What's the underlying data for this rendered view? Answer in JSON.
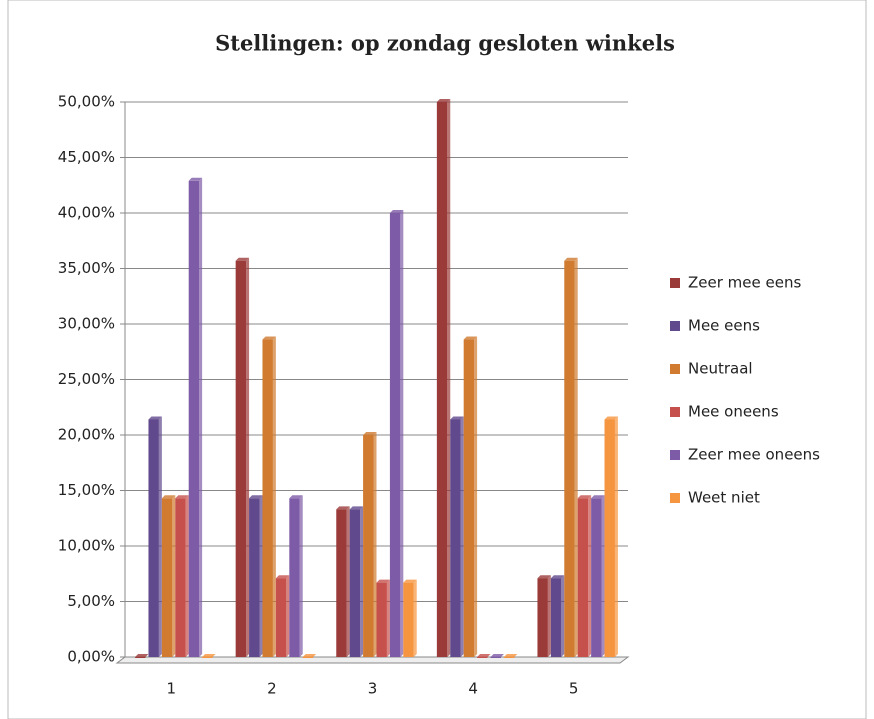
{
  "chart_data": {
    "type": "bar",
    "title": "Stellingen: op zondag gesloten winkels",
    "categories": [
      "1",
      "2",
      "3",
      "4",
      "5"
    ],
    "series": [
      {
        "name": "Zeer mee eens",
        "color": "#9b3b39",
        "values": [
          0,
          35.7,
          13.3,
          50.0,
          7.1
        ]
      },
      {
        "name": "Mee eens",
        "color": "#60498c",
        "values": [
          21.4,
          14.3,
          13.3,
          21.4,
          7.1
        ]
      },
      {
        "name": "Neutraal",
        "color": "#d07b2f",
        "values": [
          14.3,
          28.6,
          20.0,
          28.6,
          35.7
        ]
      },
      {
        "name": "Mee oneens",
        "color": "#c6504c",
        "values": [
          14.3,
          7.1,
          6.7,
          0,
          14.3
        ]
      },
      {
        "name": "Zeer mee oneens",
        "color": "#7e5ba7",
        "values": [
          42.9,
          14.3,
          40.0,
          0,
          14.3
        ]
      },
      {
        "name": "Weet niet",
        "color": "#f6953f",
        "values": [
          0,
          0,
          6.7,
          0,
          21.4
        ]
      }
    ],
    "ylim": [
      0,
      50
    ],
    "yticks": [
      {
        "value": 0,
        "label": "0,00%"
      },
      {
        "value": 5,
        "label": "5,00%"
      },
      {
        "value": 10,
        "label": "10,00%"
      },
      {
        "value": 15,
        "label": "15,00%"
      },
      {
        "value": 20,
        "label": "20,00%"
      },
      {
        "value": 25,
        "label": "25,00%"
      },
      {
        "value": 30,
        "label": "30,00%"
      },
      {
        "value": 35,
        "label": "35,00%"
      },
      {
        "value": 40,
        "label": "40,00%"
      },
      {
        "value": 45,
        "label": "45,00%"
      },
      {
        "value": 50,
        "label": "50,00%"
      }
    ],
    "grid": true,
    "legend": "right"
  }
}
